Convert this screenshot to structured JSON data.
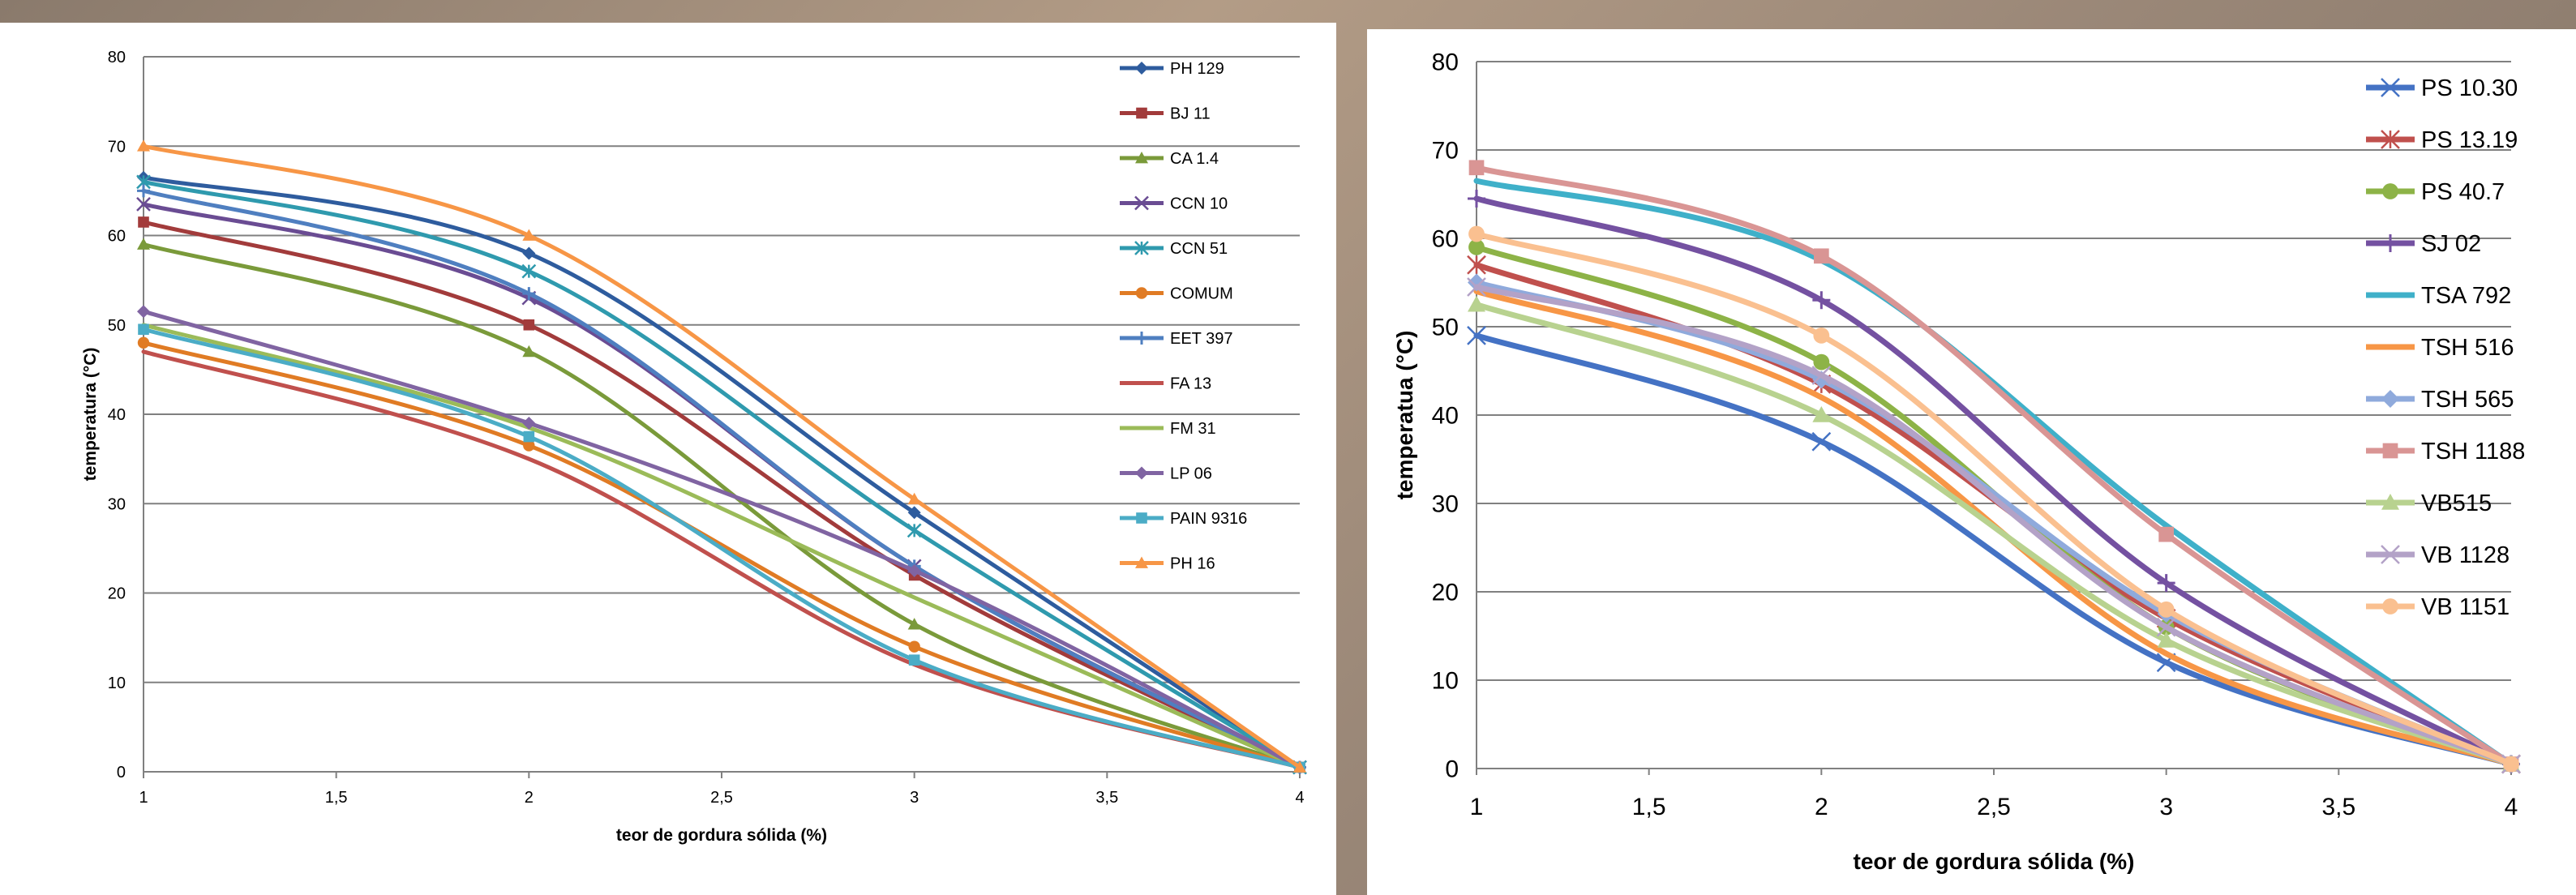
{
  "chart_data": [
    {
      "type": "line",
      "title": "",
      "xlabel": "teor de gordura sólida (%)",
      "ylabel": "temperatura (°C)",
      "xlim": [
        1,
        4
      ],
      "ylim": [
        0,
        80
      ],
      "xticks": [
        "1",
        "1,5",
        "2",
        "2,5",
        "3",
        "3,5",
        "4"
      ],
      "yticks": [
        "0",
        "10",
        "20",
        "30",
        "40",
        "50",
        "60",
        "70",
        "80"
      ],
      "grid": true,
      "legend_position": "top-right",
      "x": [
        1,
        2,
        3,
        4
      ],
      "series": [
        {
          "name": "PH 129",
          "color": "#2E5C9E",
          "marker": "diamond",
          "values": [
            66.5,
            58,
            29,
            0.5
          ]
        },
        {
          "name": "BJ 11",
          "color": "#A23B3B",
          "marker": "square",
          "values": [
            61.5,
            50,
            22,
            0.5
          ]
        },
        {
          "name": "CA 1.4",
          "color": "#7A9A3A",
          "marker": "triangle",
          "values": [
            59,
            47,
            16.5,
            0.5
          ]
        },
        {
          "name": "CCN 10",
          "color": "#6A4C93",
          "marker": "x",
          "values": [
            63.5,
            53,
            23,
            0.5
          ]
        },
        {
          "name": "CCN 51",
          "color": "#2F9AAE",
          "marker": "asterisk",
          "values": [
            66,
            56,
            27,
            0.5
          ]
        },
        {
          "name": "COMUM",
          "color": "#E07B24",
          "marker": "circle",
          "values": [
            48,
            36.5,
            14,
            0.5
          ]
        },
        {
          "name": "EET 397",
          "color": "#4F7FC0",
          "marker": "plus",
          "values": [
            65,
            53.5,
            23,
            0.5
          ]
        },
        {
          "name": "FA 13",
          "color": "#C0504D",
          "marker": "none",
          "values": [
            47,
            35,
            12,
            0.5
          ]
        },
        {
          "name": "FM 31",
          "color": "#9BBB59",
          "marker": "none",
          "values": [
            50,
            38.5,
            19.5,
            0.5
          ]
        },
        {
          "name": "LP 06",
          "color": "#8064A2",
          "marker": "diamond",
          "values": [
            51.5,
            39,
            22.5,
            0.5
          ]
        },
        {
          "name": "PAIN 9316",
          "color": "#4BACC6",
          "marker": "square",
          "values": [
            49.5,
            37.5,
            12.5,
            0.5
          ]
        },
        {
          "name": "PH 16",
          "color": "#F79646",
          "marker": "triangle",
          "values": [
            70,
            60,
            30.5,
            0.5
          ]
        }
      ]
    },
    {
      "type": "line",
      "title": "",
      "xlabel": "teor de gordura sólida (%)",
      "ylabel": "temperatua (°C)",
      "xlim": [
        1,
        4
      ],
      "ylim": [
        0,
        80
      ],
      "xticks": [
        "1",
        "1,5",
        "2",
        "2,5",
        "3",
        "3,5",
        "4"
      ],
      "yticks": [
        "0",
        "10",
        "20",
        "30",
        "40",
        "50",
        "60",
        "70",
        "80"
      ],
      "grid": true,
      "legend_position": "top-right",
      "x": [
        1,
        2,
        3,
        4
      ],
      "series": [
        {
          "name": "PS 10.30",
          "color": "#4472C4",
          "marker": "x",
          "values": [
            49,
            37,
            12,
            0.5
          ]
        },
        {
          "name": "PS 13.19",
          "color": "#C0504D",
          "marker": "asterisk",
          "values": [
            57,
            43.5,
            17,
            0.5
          ]
        },
        {
          "name": "PS 40.7",
          "color": "#8DB347",
          "marker": "circle",
          "values": [
            59,
            46,
            16,
            0.5
          ]
        },
        {
          "name": "SJ 02",
          "color": "#7451A1",
          "marker": "plus",
          "values": [
            64.5,
            53,
            21,
            0.5
          ]
        },
        {
          "name": "TSA 792",
          "color": "#3FB0C9",
          "marker": "none",
          "values": [
            66.5,
            57.5,
            27.5,
            0.5
          ]
        },
        {
          "name": "TSH 516",
          "color": "#F79646",
          "marker": "none",
          "values": [
            54,
            42,
            13,
            0.5
          ]
        },
        {
          "name": "TSH 565",
          "color": "#8FAADC",
          "marker": "diamond",
          "values": [
            55,
            44,
            17.5,
            0.5
          ]
        },
        {
          "name": "TSH 1188",
          "color": "#D99594",
          "marker": "square",
          "values": [
            68,
            58,
            26.5,
            0.5
          ]
        },
        {
          "name": "VB515",
          "color": "#B8D28F",
          "marker": "triangle",
          "values": [
            52.5,
            40,
            14.5,
            0.5
          ]
        },
        {
          "name": "VB 1128",
          "color": "#B3A2C7",
          "marker": "x",
          "values": [
            54.5,
            44.5,
            16,
            0.5
          ]
        },
        {
          "name": "VB 1151",
          "color": "#FAC090",
          "marker": "circle",
          "values": [
            60.5,
            49,
            18,
            0.5
          ]
        }
      ]
    }
  ]
}
